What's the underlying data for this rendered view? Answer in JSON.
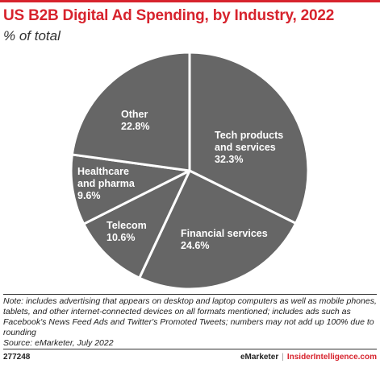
{
  "header": {
    "title": "US B2B Digital Ad Spending, by Industry, 2022",
    "subtitle": "% of total"
  },
  "chart_data": {
    "type": "pie",
    "title": "US B2B Digital Ad Spending, by Industry, 2022",
    "subtitle": "% of total",
    "slice_color": "#666666",
    "border_color": "#ffffff",
    "slices": [
      {
        "label": [
          "Tech products",
          "and services"
        ],
        "value": 32.3,
        "value_text": "32.3%"
      },
      {
        "label": [
          "Financial services"
        ],
        "value": 24.6,
        "value_text": "24.6%"
      },
      {
        "label": [
          "Telecom"
        ],
        "value": 10.6,
        "value_text": "10.6%"
      },
      {
        "label": [
          "Healthcare",
          "and pharma"
        ],
        "value": 9.6,
        "value_text": "9.6%"
      },
      {
        "label": [
          "Other"
        ],
        "value": 22.8,
        "value_text": "22.8%"
      }
    ]
  },
  "notes": {
    "note": "Note: includes advertising that appears on desktop and laptop computers as well as mobile phones, tablets, and other internet-connected devices on all formats mentioned; includes ads such as Facebook's News Feed Ads and Twitter's Promoted Tweets; numbers may not add up 100% due to rounding",
    "source": "Source: eMarketer, July 2022"
  },
  "footer": {
    "chart_id": "277248",
    "brand": "eMarketer",
    "separator": "|",
    "site": "InsiderIntelligence.com"
  }
}
